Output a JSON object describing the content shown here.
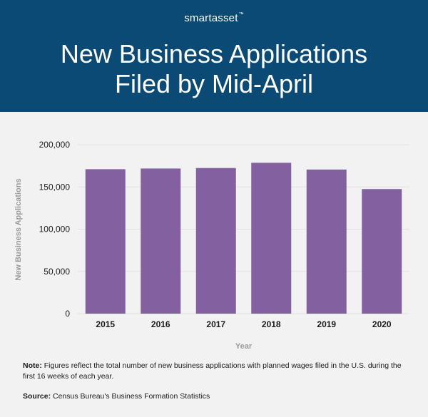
{
  "header": {
    "brand": "smartasset",
    "brand_mark": "™",
    "title_line1": "New Business Applications",
    "title_line2": "Filed by Mid-April"
  },
  "colors": {
    "header_bg": "#0b4a74",
    "bar": "#8360a0",
    "panel_bg": "#f3f2f3",
    "grid": "#e2e1e2",
    "axis_text": "#9a9a9a"
  },
  "footer": {
    "note_label": "Note:",
    "note_text": " Figures reflect the total number of new business applications with planned wages filed in the U.S. during the first 16 weeks of each year.",
    "source_label": "Source:",
    "source_text": " Census Bureau's Business Formation Statistics"
  },
  "chart_data": {
    "type": "bar",
    "categories": [
      "2015",
      "2016",
      "2017",
      "2018",
      "2019",
      "2020"
    ],
    "values": [
      171000,
      171800,
      172400,
      178600,
      170600,
      147500
    ],
    "xlabel": "Year",
    "ylabel": "New Business Applications",
    "ylim": [
      0,
      200000
    ],
    "yticks": [
      0,
      50000,
      100000,
      150000,
      200000
    ],
    "ytick_labels": [
      "0",
      "50,000",
      "100,000",
      "150,000",
      "200,000"
    ],
    "grid": true,
    "legend": "none"
  }
}
